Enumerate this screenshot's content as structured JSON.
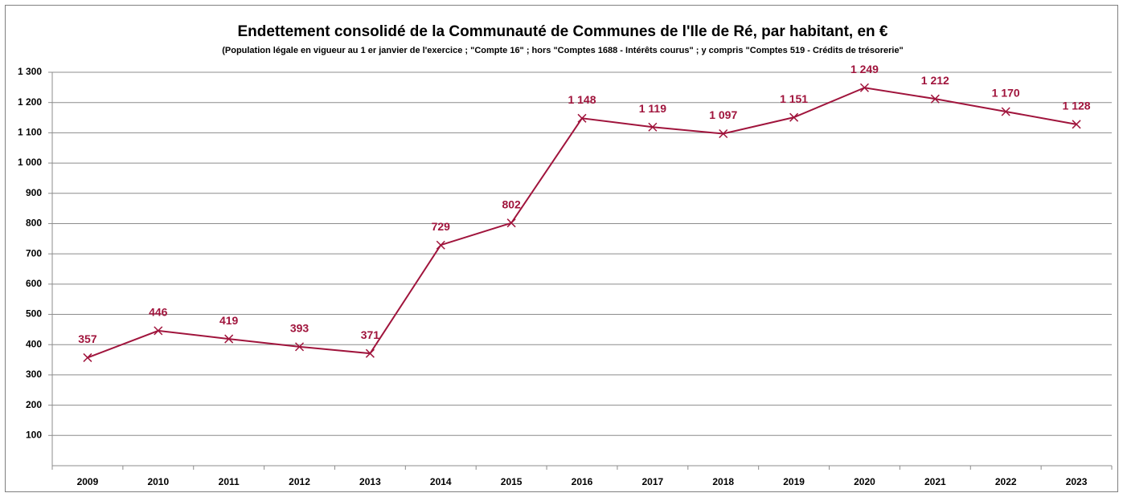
{
  "chart_data": {
    "type": "line",
    "title": "Endettement consolidé de la Communauté de Communes de l'Ile de Ré, par habitant,    en €",
    "subtitle": "(Population légale en vigueur au 1 er janvier de l'exercice ; \"Compte 16\" ; hors \"Comptes 1688 - Intérêts courus\" ; y compris \"Comptes 519 - Crédits de trésorerie\"",
    "categories": [
      "2009",
      "2010",
      "2011",
      "2012",
      "2013",
      "2014",
      "2015",
      "2016",
      "2017",
      "2018",
      "2019",
      "2020",
      "2021",
      "2022",
      "2023"
    ],
    "values": [
      357,
      446,
      419,
      393,
      371,
      729,
      802,
      1148,
      1119,
      1097,
      1151,
      1249,
      1212,
      1170,
      1128
    ],
    "value_labels": [
      "357",
      "446",
      "419",
      "393",
      "371",
      "729",
      "802",
      "1 148",
      "1 119",
      "1 097",
      "1 151",
      "1 249",
      "1 212",
      "1 170",
      "1 128"
    ],
    "color": "#a0143c",
    "ylim": [
      0,
      1300
    ],
    "yticks": [
      100,
      200,
      300,
      400,
      500,
      600,
      700,
      800,
      900,
      {
        "value": 1000,
        "label": "1 000"
      },
      {
        "value": 1100,
        "label": "1 100"
      },
      {
        "value": 1200,
        "label": "1 200"
      },
      {
        "value": 1300,
        "label": "1 300"
      }
    ],
    "grid": true
  }
}
